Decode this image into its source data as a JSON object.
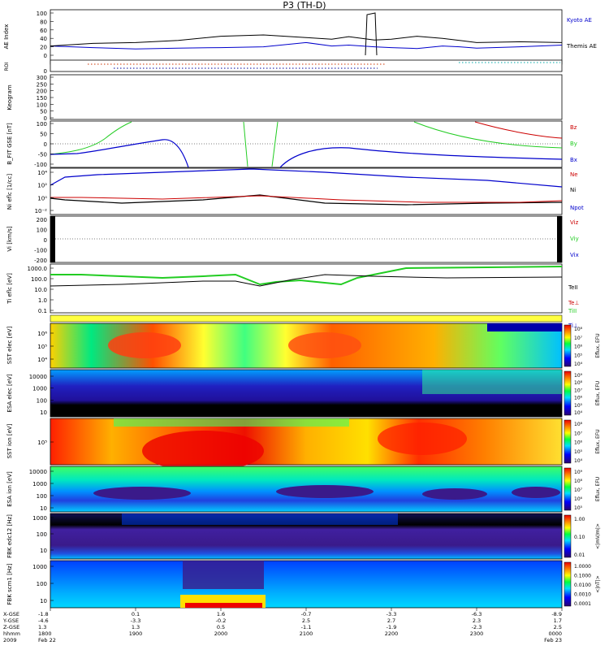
{
  "title": "P3 (TH-D)",
  "chart_data": [
    {
      "panel": "ae",
      "type": "line",
      "ylabel": "AE Index",
      "yticks": [
        "100",
        "80",
        "60",
        "40",
        "20",
        "0"
      ],
      "ylim": [
        0,
        100
      ],
      "series": [
        {
          "name": "Kyoto AE",
          "color": "#0000cc",
          "x": [
            18.0,
            18.5,
            19.0,
            19.5,
            20.0,
            20.5,
            21.0,
            21.3,
            21.5,
            21.8,
            22.0,
            22.3,
            22.6,
            22.8,
            23.0,
            23.5,
            24.0
          ],
          "y": [
            22,
            18,
            15,
            17,
            18,
            20,
            30,
            22,
            24,
            20,
            18,
            16,
            22,
            20,
            17,
            20,
            24
          ]
        },
        {
          "name": "Themis AE",
          "color": "#000000",
          "x": [
            18.0,
            18.5,
            19.0,
            19.5,
            20.0,
            20.5,
            21.0,
            21.3,
            21.5,
            21.8,
            22.0,
            22.3,
            22.6,
            22.8,
            23.0,
            23.5,
            24.0
          ],
          "y": [
            22,
            28,
            30,
            35,
            45,
            48,
            42,
            38,
            44,
            36,
            38,
            45,
            40,
            35,
            30,
            32,
            30
          ]
        }
      ]
    },
    {
      "panel": "roi",
      "type": "scatter",
      "ylabel": "ROI",
      "yticks": [
        "0"
      ]
    },
    {
      "panel": "keogram",
      "type": "line",
      "ylabel": "Keogram",
      "yticks": [
        "300",
        "250",
        "200",
        "150",
        "100",
        "50",
        "0"
      ],
      "ylim": [
        0,
        300
      ]
    },
    {
      "panel": "bfield",
      "type": "line",
      "ylabel": "B_FIT GSE [nT]",
      "yticks": [
        "100",
        "50",
        "0",
        "-50",
        "-100"
      ],
      "ylim": [
        -100,
        100
      ],
      "series": [
        {
          "name": "Bz",
          "color": "#cc0000"
        },
        {
          "name": "By",
          "color": "#22cc22"
        },
        {
          "name": "Bx",
          "color": "#0000cc"
        }
      ]
    },
    {
      "panel": "density",
      "type": "line",
      "ylabel": "Ni eflc [1/cc]",
      "yticks": [
        "10⁴",
        "10²",
        "10⁰",
        "10⁻²"
      ],
      "series": [
        {
          "name": "Ne",
          "color": "#cc0000"
        },
        {
          "name": "Ni",
          "color": "#000000"
        },
        {
          "name": "Npot",
          "color": "#0000cc"
        }
      ]
    },
    {
      "panel": "velocity",
      "type": "line",
      "ylabel": "Vi [km/s]",
      "yticks": [
        "200",
        "100",
        "0",
        "-100",
        "-200"
      ],
      "ylim": [
        -200,
        200
      ],
      "series": [
        {
          "name": "Viz",
          "color": "#cc0000"
        },
        {
          "name": "Viy",
          "color": "#22cc22"
        },
        {
          "name": "Vix",
          "color": "#0000cc"
        }
      ]
    },
    {
      "panel": "temperature",
      "type": "line",
      "ylabel": "Ti eflc [eV]",
      "yticks": [
        "1000.0",
        "100.0",
        "10.0",
        "1.0",
        "0.1"
      ],
      "series": [
        {
          "name": "TeII",
          "color": "#000000"
        },
        {
          "name": "Te⊥",
          "color": "#cc0000"
        },
        {
          "name": "TiII",
          "color": "#22cc22"
        },
        {
          "name": "Ti⊥",
          "color": "#0000cc"
        }
      ]
    },
    {
      "panel": "sst_e",
      "type": "heatmap",
      "ylabel": "SST elec [eV]",
      "yticks": [
        "10⁶",
        "10⁵",
        "10⁴"
      ],
      "cbar": "Eflux, EFU",
      "cbar_ticks": [
        "10⁸",
        "10⁷",
        "10⁶",
        "10⁵",
        "10⁴"
      ]
    },
    {
      "panel": "esa_e",
      "type": "heatmap",
      "ylabel": "ESA elec [eV]",
      "yticks": [
        "10000",
        "1000",
        "100",
        "10"
      ],
      "cbar": "Eflux, EFU",
      "cbar_ticks": [
        "10⁹",
        "10⁸",
        "10⁷",
        "10⁶",
        "10⁵",
        "10⁴"
      ]
    },
    {
      "panel": "sst_i",
      "type": "heatmap",
      "ylabel": "SST ion [eV]",
      "yticks": [
        "10⁵"
      ],
      "cbar": "Eflux, EFU",
      "cbar_ticks": [
        "10⁸",
        "10⁷",
        "10⁶",
        "10⁵",
        "10⁴"
      ]
    },
    {
      "panel": "esa_i",
      "type": "heatmap",
      "ylabel": "ESA ion [eV]",
      "yticks": [
        "10000",
        "1000",
        "100",
        "10"
      ],
      "cbar": "Eflux, EFU",
      "cbar_ticks": [
        "10⁹",
        "10⁸",
        "10⁷",
        "10⁶",
        "10⁵"
      ]
    },
    {
      "panel": "fbk_e",
      "type": "heatmap",
      "ylabel": "FBK edc12 [Hz]",
      "yticks": [
        "1000",
        "100",
        "10"
      ],
      "cbar": "<|mV/m|>",
      "cbar_ticks": [
        "1.00",
        "0.10",
        "0.01"
      ]
    },
    {
      "panel": "fbk_b",
      "type": "heatmap",
      "ylabel": "FBK scm1 [Hz]",
      "yticks": [
        "1000",
        "100",
        "10"
      ],
      "cbar": "<|nT|>",
      "cbar_ticks": [
        "1.0000",
        "0.1000",
        "0.0100",
        "0.0010",
        "0.0001"
      ]
    }
  ],
  "xaxis": {
    "row_labels": [
      "X-GSE",
      "Y-GSE",
      "Z-GSE",
      "hhmm",
      "2009"
    ],
    "columns": [
      {
        "vals": [
          "-1.8",
          "-4.6",
          "1.3",
          "1800",
          "Feb 22"
        ]
      },
      {
        "vals": [
          "0.1",
          "-3.3",
          "1.3",
          "1900",
          ""
        ]
      },
      {
        "vals": [
          "1.6",
          "-0.2",
          "0.5",
          "2000",
          ""
        ]
      },
      {
        "vals": [
          "-0.7",
          "2.5",
          "-1.1",
          "2100",
          ""
        ]
      },
      {
        "vals": [
          "-3.3",
          "2.7",
          "-1.9",
          "2200",
          ""
        ]
      },
      {
        "vals": [
          "-6.3",
          "2.3",
          "-2.3",
          "2300",
          ""
        ]
      },
      {
        "vals": [
          "-8.9",
          "1.7",
          "2.5",
          "0000",
          "Feb 23"
        ]
      }
    ]
  },
  "colors": {
    "kyoto": "#0000cc",
    "themis": "#000000",
    "red": "#cc0000",
    "green": "#22cc22",
    "blue": "#0000cc"
  }
}
